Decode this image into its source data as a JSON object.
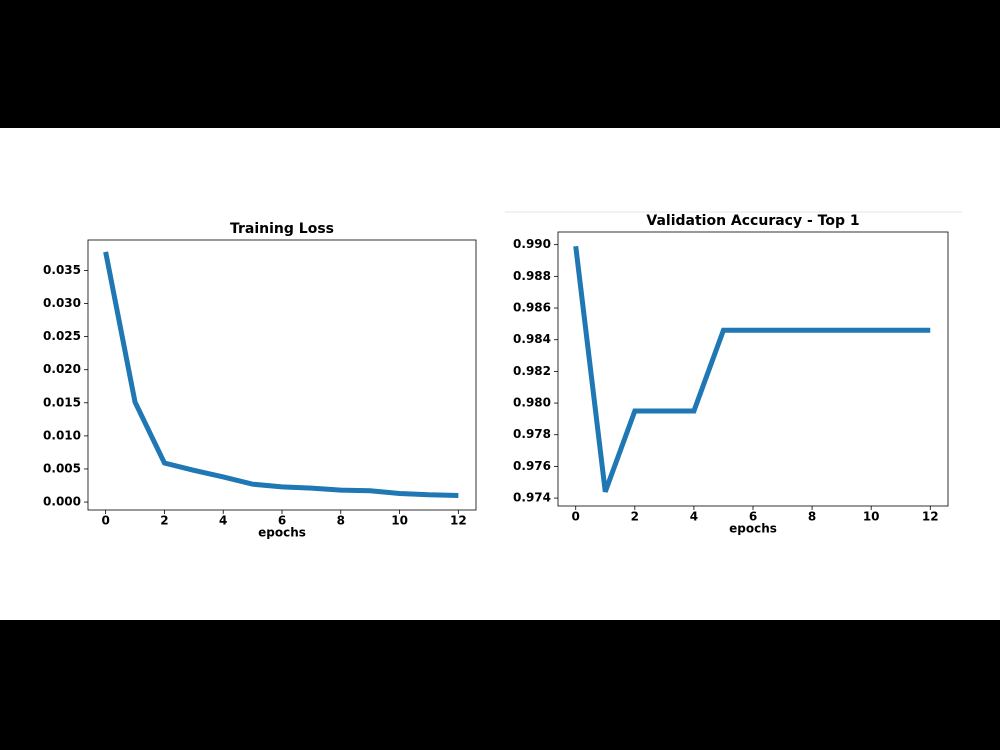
{
  "chart_data": [
    {
      "type": "line",
      "title": "Training Loss",
      "x_label": "epochs",
      "x": [
        0,
        1,
        2,
        3,
        4,
        5,
        6,
        7,
        8,
        9,
        10,
        11,
        12
      ],
      "series": [
        {
          "color": "#1f77b4",
          "values": [
            0.0378,
            0.0151,
            0.0059,
            0.0048,
            0.0038,
            0.0027,
            0.0023,
            0.0021,
            0.0018,
            0.0017,
            0.0013,
            0.0011,
            0.001
          ]
        }
      ],
      "xlim": [
        -0.6,
        12.6
      ],
      "xticks": [
        0,
        2,
        4,
        6,
        8,
        10,
        12
      ],
      "ylim": [
        -0.0012,
        0.0396
      ],
      "yticks": [
        {
          "value": 0,
          "label": "0.000"
        },
        0.005,
        {
          "value": 0.01,
          "label": "0.010"
        },
        0.015,
        {
          "value": 0.02,
          "label": "0.020"
        },
        0.025,
        {
          "value": 0.03,
          "label": "0.030"
        },
        0.035
      ]
    },
    {
      "type": "line",
      "title": "Validation Accuracy - Top 1",
      "x_label": "epochs",
      "x": [
        0,
        1,
        2,
        3,
        4,
        5,
        6,
        7,
        8,
        9,
        10,
        11,
        12
      ],
      "series": [
        {
          "color": "#1f77b4",
          "values": [
            0.9899,
            0.9744,
            0.9795,
            0.9795,
            0.9795,
            0.9846,
            0.9846,
            0.9846,
            0.9846,
            0.9846,
            0.9846,
            0.9846,
            0.9846
          ]
        }
      ],
      "xlim": [
        -0.6,
        12.6
      ],
      "xticks": [
        0,
        2,
        4,
        6,
        8,
        10,
        12
      ],
      "ylim": [
        0.9735,
        0.9908
      ],
      "yticks": [
        0.974,
        0.976,
        0.978,
        {
          "value": 0.98,
          "label": "0.980"
        },
        0.982,
        0.984,
        0.986,
        0.988,
        {
          "value": 0.99,
          "label": "0.990"
        }
      ]
    }
  ]
}
